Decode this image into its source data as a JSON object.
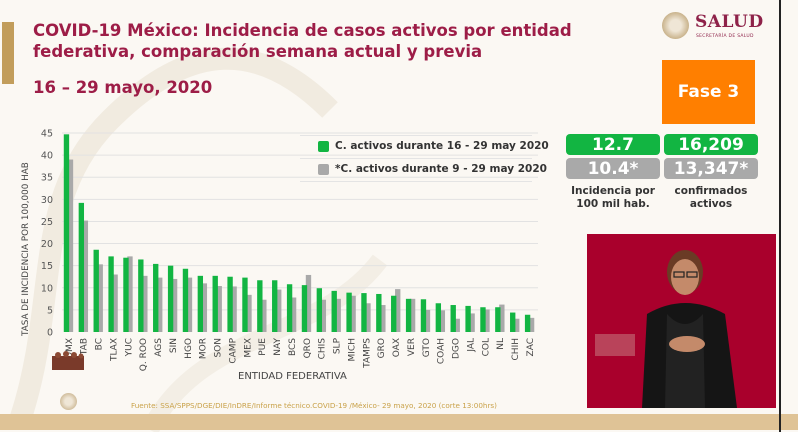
{
  "header": {
    "title": "COVID-19 México: Incidencia de casos activos por entidad federativa, comparación semana actual y previa",
    "date_range": "16 – 29 mayo, 2020",
    "logo_text": "SALUD",
    "logo_subtext": "SECRETARÍA DE SALUD",
    "phase_label": "Fase 3"
  },
  "colors": {
    "title": "#9d1d47",
    "current": "#12b542",
    "previous": "#a9a9a9",
    "phase": "#ff7f00",
    "interpreter_bg": "#a9002c"
  },
  "stats": {
    "incidence_current": "12.7",
    "incidence_previous": "10.4*",
    "incidence_label_line1": "Incidencia por",
    "incidence_label_line2": "100 mil hab.",
    "active_current": "16,209",
    "active_previous": "13,347*",
    "active_label_line1": "confirmados",
    "active_label_line2": "activos"
  },
  "footer": {
    "source": "Fuente: SSA/SPPS/DGE/DIE/InDRE/Informe técnico.COVID-19 /México- 29 mayo, 2020 (corte 13:00hrs)"
  },
  "chart_data": {
    "type": "bar",
    "title": "COVID-19 México: Incidencia de casos activos por entidad federativa, comparación semana actual y previa",
    "xlabel": "ENTIDAD FEDERATIVA",
    "ylabel": "TASA DE INCIDENCIA POR 100,000 HAB",
    "ylim": [
      0,
      45
    ],
    "yticks": [
      0,
      5,
      10,
      15,
      20,
      25,
      30,
      35,
      40,
      45
    ],
    "grid": true,
    "legend_position": "top-right",
    "categories": [
      "CDMX",
      "TAB",
      "BC",
      "TLAX",
      "YUC",
      "Q. ROO",
      "AGS",
      "SIN",
      "HGO",
      "MOR",
      "SON",
      "CAMP",
      "MEX",
      "PUE",
      "NAY",
      "BCS",
      "QRO",
      "CHIS",
      "SLP",
      "MICH",
      "TAMPS",
      "GRO",
      "OAX",
      "VER",
      "GTO",
      "COAH",
      "DGO",
      "JAL",
      "COL",
      "NL",
      "CHIH",
      "ZAC"
    ],
    "series": [
      {
        "name": "C. activos durante 16 - 29 may 2020",
        "values": [
          44.7,
          29.2,
          18.6,
          17.1,
          16.8,
          16.4,
          15.4,
          15.0,
          14.3,
          12.7,
          12.7,
          12.5,
          12.3,
          11.7,
          11.7,
          10.8,
          10.6,
          9.9,
          9.3,
          8.9,
          8.8,
          8.6,
          8.2,
          7.5,
          7.4,
          6.5,
          6.1,
          5.9,
          5.6,
          5.6,
          4.4,
          3.9
        ]
      },
      {
        "name": "*C. activos durante 9 - 29 may 2020",
        "values": [
          39.0,
          25.2,
          15.3,
          13.0,
          17.1,
          12.7,
          12.3,
          12.0,
          12.3,
          11.0,
          10.4,
          10.3,
          8.4,
          7.3,
          9.6,
          7.8,
          12.9,
          7.3,
          7.5,
          8.2,
          6.5,
          6.1,
          9.7,
          7.5,
          5.0,
          4.9,
          3.0,
          4.2,
          5.1,
          6.2,
          3.0,
          3.2
        ]
      }
    ]
  }
}
